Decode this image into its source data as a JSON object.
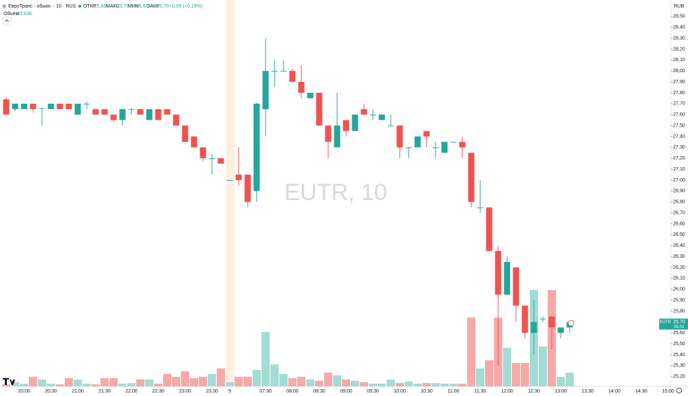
{
  "chart_data": {
    "type": "candlestick",
    "title": "ЕвроТранс · обыкн. · 10 · RUS",
    "legend": {
      "open_label": "ОТКР",
      "open": "25,65",
      "high_label": "МАКС",
      "high": "25,70",
      "low_label": "МИН",
      "low": "25,60",
      "close_label": "ЗАКР",
      "close": "25,70",
      "change": "+0,05 (+0,19%)"
    },
    "volume_label": "Объём",
    "volume_value": "82,04K",
    "currency": "RUB",
    "watermark": "EUTR, 10",
    "price_tag": {
      "symbol": "EUTR",
      "price": "25,70",
      "countdown": "05:42"
    },
    "categories": [
      null,
      null,
      "20:00",
      null,
      null,
      "20:30",
      null,
      null,
      "21:00",
      null,
      null,
      "21:30",
      null,
      null,
      "22:00",
      null,
      null,
      "22:30",
      null,
      null,
      "23:00",
      null,
      null,
      "23:30",
      null,
      "9",
      null,
      null,
      null,
      "07:30",
      null,
      null,
      "08:00",
      null,
      null,
      "08:30",
      null,
      null,
      "09:00",
      null,
      null,
      "09:30",
      null,
      null,
      "10:00",
      null,
      null,
      "10:30",
      null,
      null,
      "11:00",
      null,
      null,
      "11:30",
      null,
      null,
      "12:00",
      null,
      null,
      "12:30",
      null,
      null,
      "13:00",
      null,
      null,
      "13:30",
      null,
      null,
      "14:00",
      null,
      null,
      "14:30",
      null,
      null,
      "15:00"
    ],
    "open": [
      27.74,
      27.65,
      27.65,
      27.7,
      27.66,
      27.65,
      27.7,
      27.7,
      27.6,
      27.7,
      27.65,
      27.65,
      27.6,
      27.55,
      27.65,
      27.65,
      27.55,
      27.65,
      27.65,
      27.6,
      27.5,
      27.4,
      27.3,
      27.2,
      27.2,
      27.0,
      27.05,
      27.05,
      26.9,
      27.65,
      28.0,
      28.0,
      28.0,
      27.9,
      27.75,
      27.8,
      27.5,
      27.3,
      27.55,
      27.45,
      27.65,
      27.6,
      27.55,
      27.5,
      27.5,
      27.3,
      27.3,
      27.45,
      27.3,
      27.25,
      27.35,
      27.35,
      27.25,
      26.75,
      26.75,
      26.35,
      25.95,
      26.2,
      25.85,
      25.6,
      25.73,
      25.75,
      25.6,
      25.65,
      null,
      null,
      null,
      null,
      null,
      null,
      null,
      null,
      null,
      null,
      null
    ],
    "high": [
      27.76,
      27.7,
      27.7,
      27.7,
      27.66,
      27.7,
      27.7,
      27.7,
      27.7,
      27.72,
      27.65,
      27.65,
      27.6,
      27.65,
      27.66,
      27.65,
      27.65,
      27.65,
      27.65,
      27.6,
      27.5,
      27.4,
      27.3,
      27.24,
      27.2,
      27.0,
      27.3,
      27.05,
      27.71,
      28.3,
      28.1,
      28.1,
      28.02,
      28.05,
      27.8,
      27.8,
      27.5,
      27.8,
      27.55,
      27.6,
      27.7,
      27.65,
      27.6,
      27.6,
      27.5,
      27.3,
      27.4,
      27.45,
      27.35,
      27.35,
      27.35,
      27.4,
      27.25,
      27.0,
      26.75,
      26.4,
      26.3,
      26.2,
      25.85,
      25.9,
      25.75,
      25.75,
      25.65,
      25.7,
      null,
      null,
      null,
      null,
      null,
      null,
      null,
      null,
      null,
      null,
      null
    ],
    "low": [
      27.6,
      27.63,
      27.65,
      27.62,
      27.5,
      27.65,
      27.65,
      27.65,
      27.6,
      27.65,
      27.6,
      27.6,
      27.53,
      27.5,
      27.6,
      27.6,
      27.55,
      27.55,
      27.6,
      27.5,
      27.35,
      27.3,
      27.17,
      27.05,
      27.15,
      27.0,
      26.95,
      26.75,
      26.8,
      27.4,
      27.85,
      28.0,
      27.9,
      27.75,
      27.75,
      27.5,
      27.2,
      27.3,
      27.4,
      27.45,
      27.6,
      27.55,
      27.55,
      27.5,
      27.2,
      27.2,
      27.3,
      27.3,
      27.2,
      27.25,
      27.35,
      27.2,
      26.75,
      26.7,
      26.35,
      25.3,
      25.95,
      25.7,
      25.55,
      25.4,
      25.7,
      25.45,
      25.55,
      25.6,
      null,
      null,
      null,
      null,
      null,
      null,
      null,
      null,
      null,
      null,
      null
    ],
    "close": [
      27.6,
      27.7,
      27.7,
      27.65,
      27.66,
      27.7,
      27.65,
      27.65,
      27.7,
      27.7,
      27.6,
      27.6,
      27.55,
      27.65,
      27.65,
      27.6,
      27.65,
      27.55,
      27.6,
      27.5,
      27.35,
      27.3,
      27.2,
      27.2,
      27.15,
      27.0,
      27.0,
      26.8,
      27.7,
      28.0,
      28.0,
      28.0,
      27.9,
      27.8,
      27.8,
      27.5,
      27.35,
      27.5,
      27.45,
      27.6,
      27.6,
      27.6,
      27.6,
      27.5,
      27.3,
      27.3,
      27.4,
      27.4,
      27.3,
      27.35,
      27.35,
      27.3,
      26.8,
      26.75,
      26.35,
      25.95,
      26.25,
      25.85,
      25.6,
      25.7,
      25.73,
      25.65,
      25.65,
      25.7,
      null,
      null,
      null,
      null,
      null,
      null,
      null,
      null,
      null,
      null,
      null
    ],
    "volume": [
      12,
      25,
      16,
      57,
      41,
      16,
      12,
      49,
      41,
      16,
      12,
      49,
      49,
      16,
      20,
      41,
      41,
      16,
      74,
      57,
      90,
      49,
      57,
      74,
      107,
      25,
      57,
      57,
      98,
      324,
      131,
      74,
      49,
      57,
      41,
      33,
      82,
      66,
      41,
      33,
      25,
      16,
      16,
      41,
      20,
      29,
      16,
      20,
      20,
      16,
      16,
      16,
      410,
      107,
      156,
      410,
      230,
      139,
      139,
      574,
      238,
      574,
      57,
      82.04,
      null,
      null,
      null,
      null,
      null,
      null,
      null,
      null,
      null,
      null,
      null
    ],
    "volume_ylim": [
      0,
      1000
    ],
    "ylim": [
      25.11,
      28.65
    ],
    "yticks": [
      {
        "value": 28.5,
        "label": "28,50"
      },
      {
        "value": 28.4,
        "label": "28,40"
      },
      {
        "value": 28.3,
        "label": "28,30"
      },
      {
        "value": 28.2,
        "label": "28,20"
      },
      {
        "value": 28.1,
        "label": "28,10"
      },
      {
        "value": 28.0,
        "label": "28,00"
      },
      {
        "value": 27.9,
        "label": "27,90"
      },
      {
        "value": 27.8,
        "label": "27,80"
      },
      {
        "value": 27.7,
        "label": "27,70"
      },
      {
        "value": 27.6,
        "label": "27,60"
      },
      {
        "value": 27.5,
        "label": "27,50"
      },
      {
        "value": 27.4,
        "label": "27,40"
      },
      {
        "value": 27.3,
        "label": "27,30"
      },
      {
        "value": 27.2,
        "label": "27,20"
      },
      {
        "value": 27.1,
        "label": "27,10"
      },
      {
        "value": 27.0,
        "label": "27,00"
      },
      {
        "value": 26.9,
        "label": "26,90"
      },
      {
        "value": 26.8,
        "label": "26,80"
      },
      {
        "value": 26.7,
        "label": "26,70"
      },
      {
        "value": 26.6,
        "label": "26,60"
      },
      {
        "value": 26.5,
        "label": "26,50"
      },
      {
        "value": 26.4,
        "label": "26,40"
      },
      {
        "value": 26.3,
        "label": "26,30"
      },
      {
        "value": 26.2,
        "label": "26,20"
      },
      {
        "value": 26.1,
        "label": "26,10"
      },
      {
        "value": 26.0,
        "label": "26,00"
      },
      {
        "value": 25.9,
        "label": "25,90"
      },
      {
        "value": 25.8,
        "label": "25,80"
      },
      {
        "value": 25.7,
        "label": "25,70"
      },
      {
        "value": 25.6,
        "label": "25,60"
      },
      {
        "value": 25.5,
        "label": "25,50"
      },
      {
        "value": 25.4,
        "label": "25,40"
      },
      {
        "value": 25.3,
        "label": "25,30"
      },
      {
        "value": 25.2,
        "label": "25,20"
      }
    ],
    "grid": false,
    "up_color": "#26a69a",
    "down_color": "#ef5350",
    "up_volume_color": "#a3dcd5",
    "down_volume_color": "#f7a9a7"
  }
}
